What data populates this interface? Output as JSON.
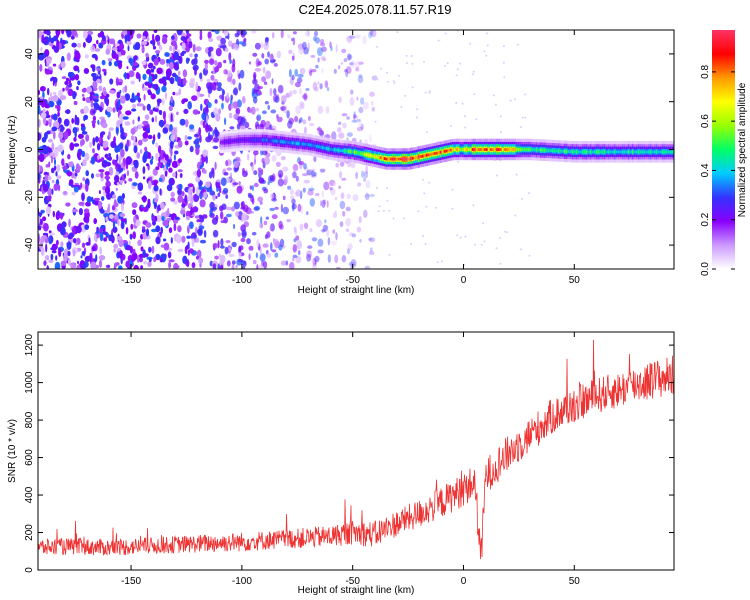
{
  "figure": {
    "title": "C2E4.2025.078.11.57.R19"
  },
  "chart_data": [
    {
      "type": "heatmap",
      "xlabel": "Height of straight line (km)",
      "ylabel": "Frequency (Hz)",
      "xlim": [
        -192,
        95
      ],
      "ylim": [
        -50,
        50
      ],
      "xticks": [
        -150,
        -100,
        -50,
        0,
        50
      ],
      "yticks": [
        -40,
        -20,
        0,
        20,
        40
      ],
      "colorbar": {
        "label": "Normalized spectral amplitude",
        "range": [
          0.0,
          0.97
        ],
        "ticks": [
          0.0,
          0.2,
          0.4,
          0.6,
          0.8
        ],
        "colormap": [
          "#ffffff",
          "#cc99ff",
          "#8800ff",
          "#3333ff",
          "#00ccff",
          "#00ff66",
          "#99ff00",
          "#ffff00",
          "#ff9900",
          "#ff0000",
          "#ff3366"
        ]
      },
      "ridge": {
        "x": [
          -110,
          -100,
          -90,
          -80,
          -70,
          -60,
          -50,
          -45,
          -40,
          -35,
          -30,
          -25,
          -20,
          -15,
          -10,
          -5,
          0,
          5,
          10,
          15,
          20,
          30,
          50,
          70,
          95
        ],
        "center": [
          3,
          4,
          4,
          3,
          2,
          0,
          -1,
          -2,
          -3,
          -4,
          -4,
          -4,
          -3,
          -2,
          -1,
          0,
          0,
          0,
          0,
          0,
          0,
          0,
          -1,
          -1,
          -1
        ],
        "amplitude": [
          0.2,
          0.25,
          0.3,
          0.35,
          0.35,
          0.4,
          0.5,
          0.6,
          0.75,
          0.85,
          0.9,
          0.9,
          0.85,
          0.8,
          0.8,
          0.75,
          0.6,
          0.85,
          0.8,
          0.85,
          0.75,
          0.5,
          0.45,
          0.45,
          0.45
        ]
      },
      "noise_region": {
        "x_from": -192,
        "x_to": -40,
        "peak_amplitude": 0.15
      }
    },
    {
      "type": "line",
      "xlabel": "Height of straight line (km)",
      "ylabel": "SNR (10 * v/v)",
      "xlim": [
        -192,
        95
      ],
      "ylim": [
        0,
        1270
      ],
      "xticks": [
        -150,
        -100,
        -50,
        0,
        50
      ],
      "yticks": [
        0,
        200,
        400,
        600,
        800,
        1000,
        1200
      ],
      "series": [
        {
          "color": "#ee3333",
          "x": [
            -192,
            -180,
            -160,
            -140,
            -120,
            -100,
            -80,
            -60,
            -50,
            -40,
            -35,
            -30,
            -20,
            -10,
            0,
            5,
            8,
            10,
            20,
            30,
            40,
            50,
            60,
            70,
            80,
            95
          ],
          "y": [
            120,
            125,
            120,
            130,
            140,
            150,
            165,
            180,
            200,
            190,
            220,
            250,
            300,
            360,
            430,
            470,
            60,
            500,
            620,
            720,
            820,
            880,
            930,
            960,
            1000,
            1040
          ],
          "spread": [
            70,
            70,
            70,
            70,
            75,
            80,
            80,
            90,
            100,
            110,
            110,
            110,
            120,
            130,
            140,
            150,
            150,
            150,
            150,
            150,
            150,
            150,
            150,
            150,
            160,
            170
          ]
        }
      ]
    }
  ]
}
